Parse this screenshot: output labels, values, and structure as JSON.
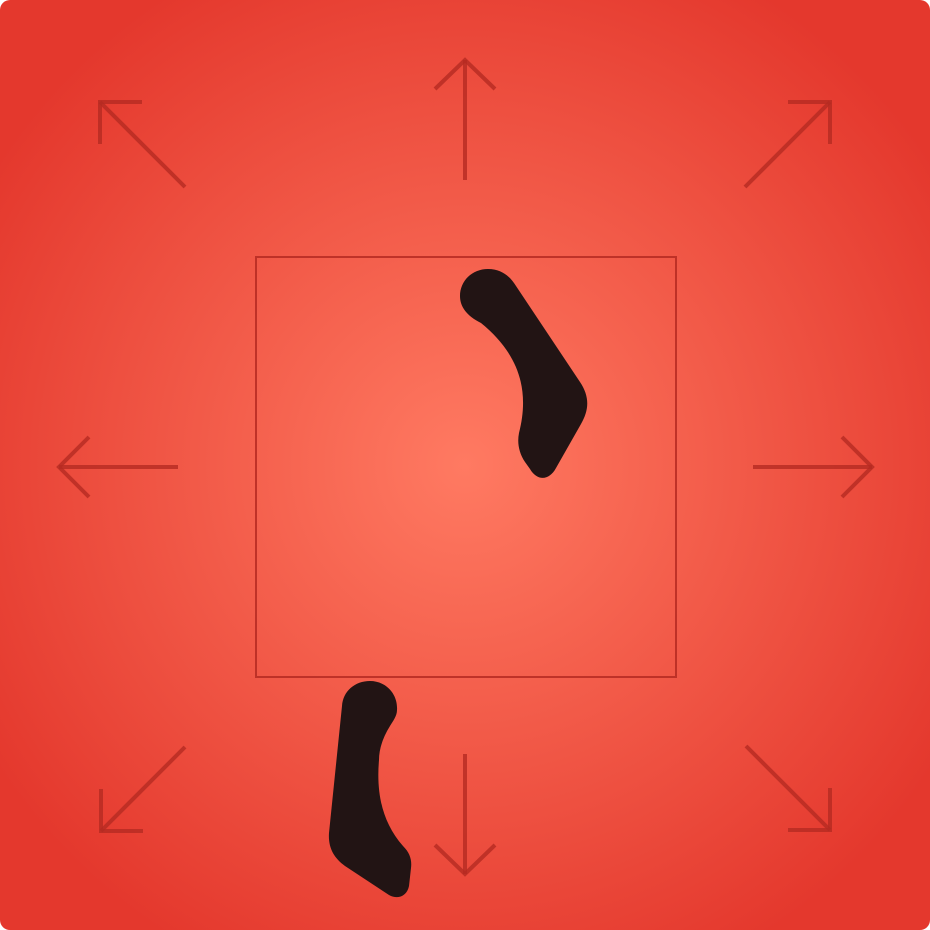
{
  "colors": {
    "background_center": "#ff7a62",
    "background_edge": "#e4382d",
    "arrow": "#b52a22",
    "frame": "#b52a22",
    "shape": "#221414"
  },
  "icons": {
    "arrows": [
      "arrow-up-icon",
      "arrow-up-right-icon",
      "arrow-right-icon",
      "arrow-down-right-icon",
      "arrow-down-icon",
      "arrow-down-left-icon",
      "arrow-left-icon",
      "arrow-up-left-icon"
    ],
    "frame": "focus-frame",
    "shapes": [
      "upper-curved-shape",
      "lower-curved-shape"
    ]
  }
}
